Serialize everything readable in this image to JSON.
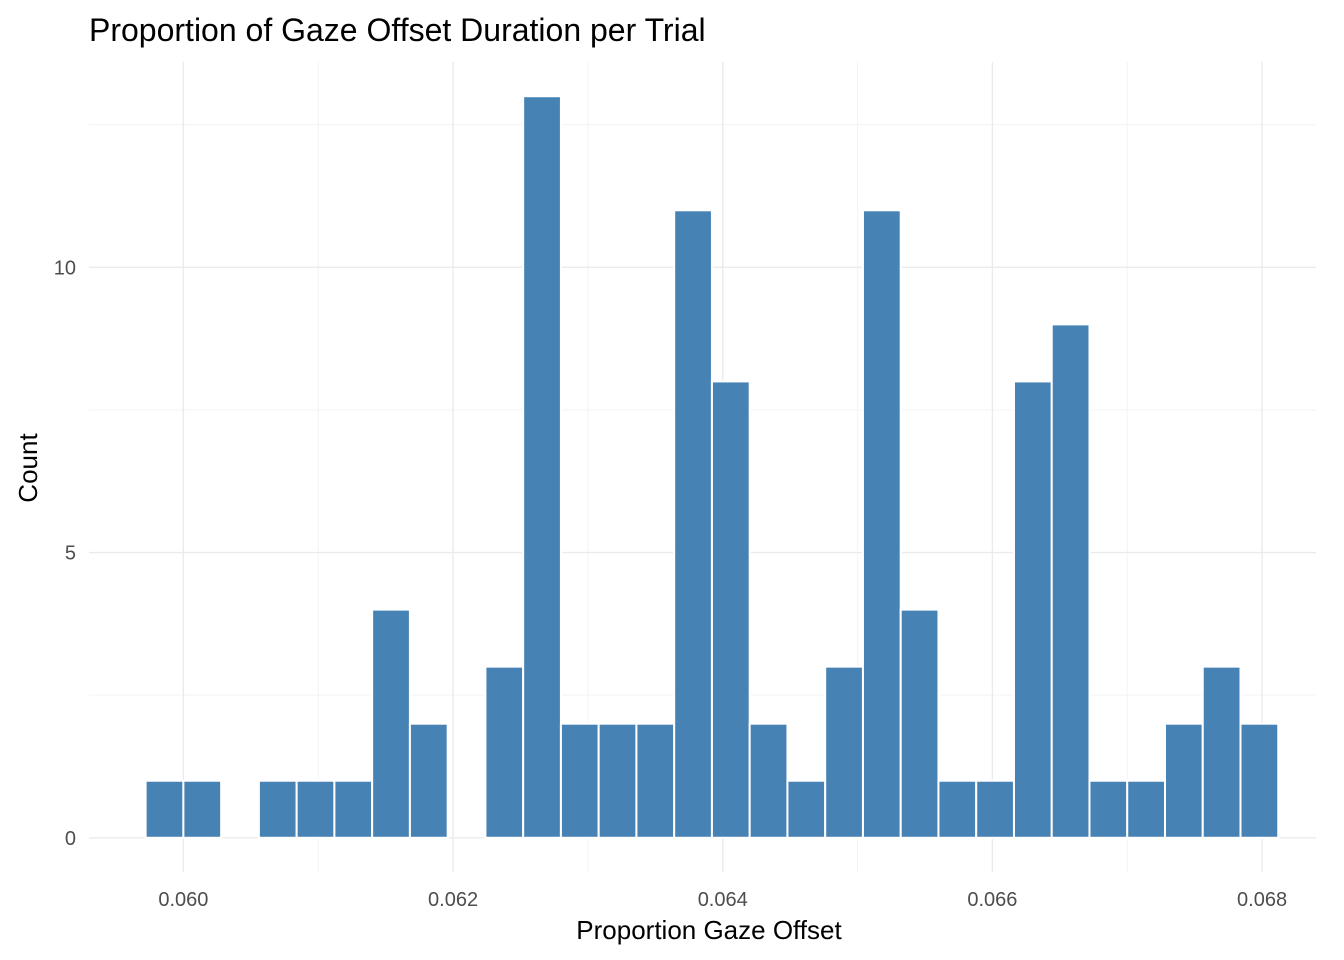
{
  "chart_data": {
    "type": "bar",
    "title": "Proportion of Gaze Offset Duration per Trial",
    "xlabel": "Proportion Gaze Offset",
    "ylabel": "Count",
    "bar_color": "#4682B4",
    "background": "#FFFFFF",
    "grid": true,
    "x_ticks": [
      0.06,
      0.062,
      0.064,
      0.066,
      0.068
    ],
    "x_tick_labels": [
      "0.060",
      "0.062",
      "0.064",
      "0.066",
      "0.068"
    ],
    "y_ticks": [
      0,
      5,
      10
    ],
    "y_tick_labels": [
      "0",
      "5",
      "10"
    ],
    "xlim": [
      0.0593,
      0.0684
    ],
    "ylim": [
      -0.6,
      13.6
    ],
    "bin_width": 0.00028,
    "bins": [
      {
        "x0": 0.05972,
        "count": 1
      },
      {
        "x0": 0.06,
        "count": 1
      },
      {
        "x0": 0.06028,
        "count": 0
      },
      {
        "x0": 0.06056,
        "count": 1
      },
      {
        "x0": 0.06084,
        "count": 1
      },
      {
        "x0": 0.06112,
        "count": 1
      },
      {
        "x0": 0.0614,
        "count": 4
      },
      {
        "x0": 0.06168,
        "count": 2
      },
      {
        "x0": 0.06196,
        "count": 0
      },
      {
        "x0": 0.06224,
        "count": 3
      },
      {
        "x0": 0.06252,
        "count": 13
      },
      {
        "x0": 0.0628,
        "count": 2
      },
      {
        "x0": 0.06308,
        "count": 2
      },
      {
        "x0": 0.06336,
        "count": 2
      },
      {
        "x0": 0.06364,
        "count": 11
      },
      {
        "x0": 0.06392,
        "count": 8
      },
      {
        "x0": 0.0642,
        "count": 2
      },
      {
        "x0": 0.06448,
        "count": 1
      },
      {
        "x0": 0.06476,
        "count": 3
      },
      {
        "x0": 0.06504,
        "count": 11
      },
      {
        "x0": 0.06532,
        "count": 4
      },
      {
        "x0": 0.0656,
        "count": 1
      },
      {
        "x0": 0.06588,
        "count": 1
      },
      {
        "x0": 0.06616,
        "count": 8
      },
      {
        "x0": 0.06644,
        "count": 9
      },
      {
        "x0": 0.06672,
        "count": 1
      },
      {
        "x0": 0.067,
        "count": 1
      },
      {
        "x0": 0.06728,
        "count": 2
      },
      {
        "x0": 0.06756,
        "count": 3
      },
      {
        "x0": 0.06784,
        "count": 2
      }
    ]
  }
}
